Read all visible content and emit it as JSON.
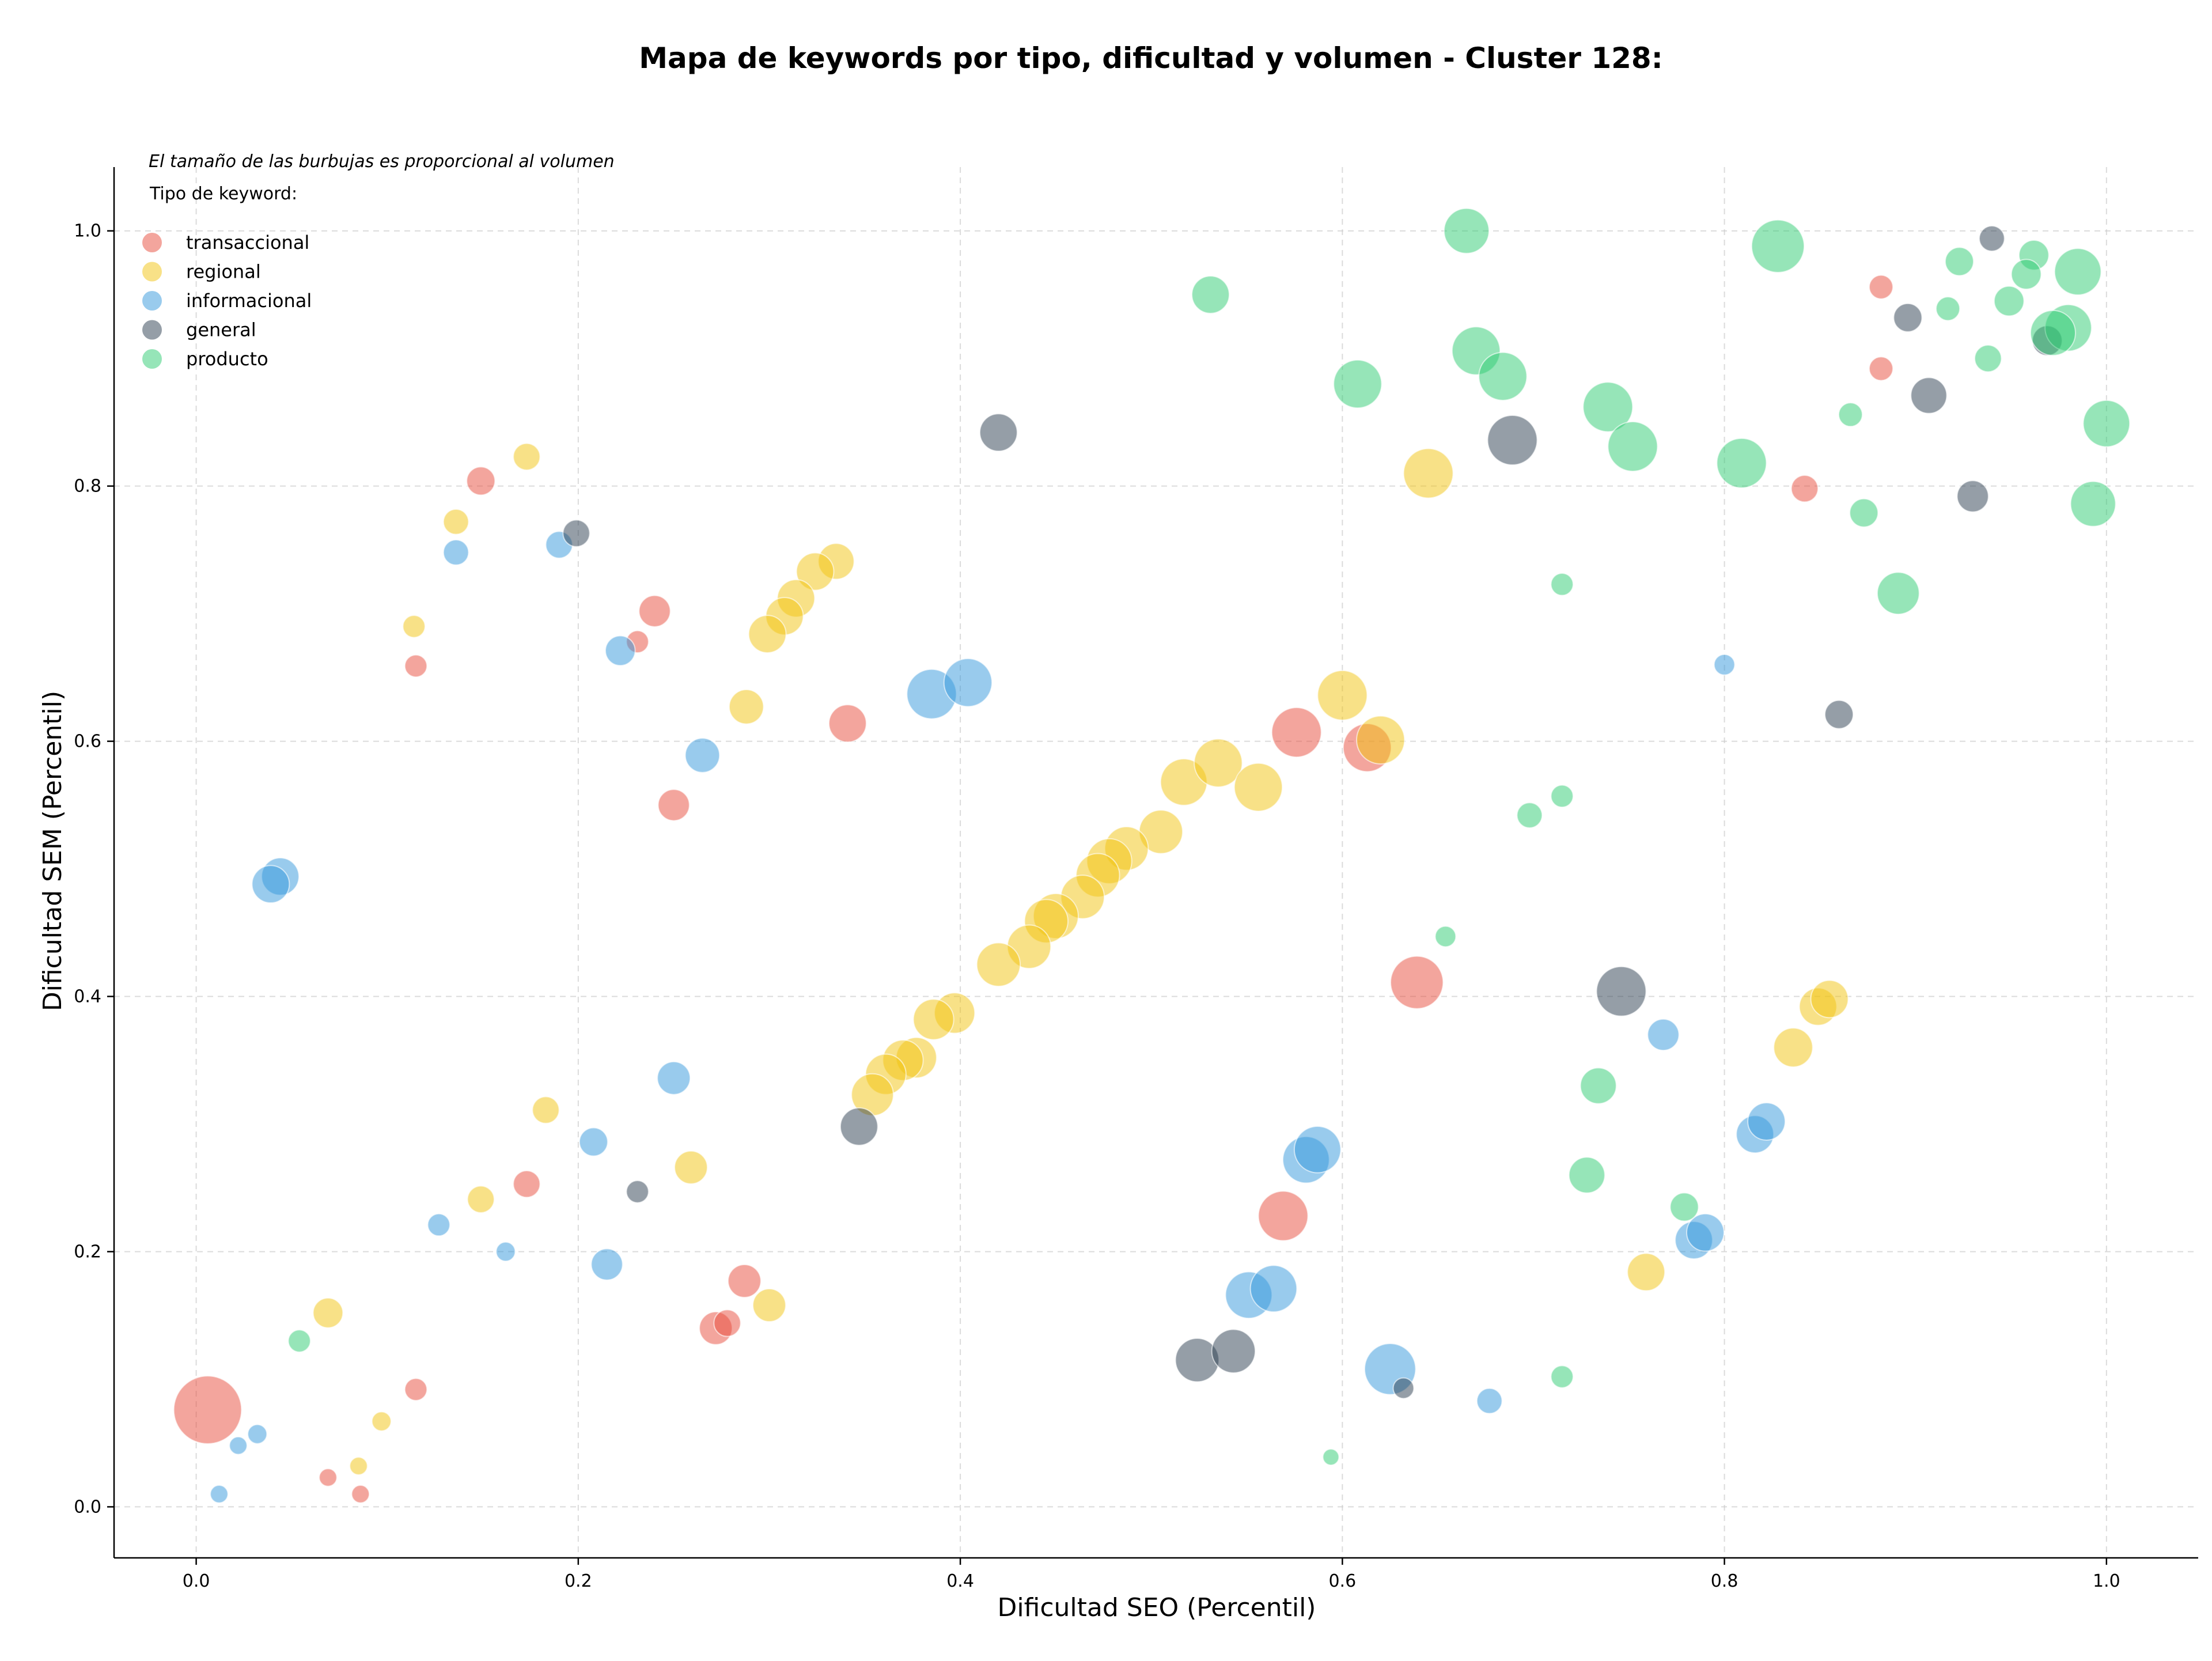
{
  "chart_data": {
    "type": "scatter",
    "title": "Mapa de keywords por tipo, dificultad y volumen - Cluster 128:",
    "xlabel": "Dificultad SEO (Percentil)",
    "ylabel": "Dificultad SEM (Percentil)",
    "xlim": [
      -0.043,
      1.048
    ],
    "ylim": [
      -0.04,
      1.05
    ],
    "xticks": [
      0.0,
      0.2,
      0.4,
      0.6,
      0.8,
      1.0
    ],
    "yticks": [
      0.0,
      0.2,
      0.4,
      0.6,
      0.8,
      1.0
    ],
    "tick_labels_x": [
      "0.0",
      "0.2",
      "0.4",
      "0.6",
      "0.8",
      "1.0"
    ],
    "tick_labels_y": [
      "0.0",
      "0.2",
      "0.4",
      "0.6",
      "0.8",
      "1.0"
    ],
    "grid": true,
    "annotation": "El tamaño de las burbujas es proporcional al volumen",
    "legend": {
      "title": "Tipo de keyword:",
      "placement": "top-left",
      "items": [
        {
          "name": "transaccional",
          "color": "#E74C3C"
        },
        {
          "name": "regional",
          "color": "#F1C40F"
        },
        {
          "name": "informacional",
          "color": "#3498DB"
        },
        {
          "name": "general",
          "color": "#2C3E50"
        },
        {
          "name": "producto",
          "color": "#2ECC71"
        }
      ]
    },
    "size_note": "Third value of each point is relative bubble size (volume, 0-100)",
    "series": [
      {
        "name": "transaccional",
        "color": "#E74C3C",
        "points": [
          [
            0.006,
            0.076,
            80
          ],
          [
            0.149,
            0.804,
            28
          ],
          [
            0.115,
            0.659,
            20
          ],
          [
            0.24,
            0.702,
            32
          ],
          [
            0.231,
            0.678,
            20
          ],
          [
            0.341,
            0.614,
            40
          ],
          [
            0.25,
            0.55,
            32
          ],
          [
            0.173,
            0.253,
            26
          ],
          [
            0.287,
            0.177,
            34
          ],
          [
            0.272,
            0.14,
            34
          ],
          [
            0.278,
            0.144,
            26
          ],
          [
            0.115,
            0.092,
            20
          ],
          [
            0.069,
            0.023,
            14
          ],
          [
            0.086,
            0.01,
            14
          ],
          [
            0.576,
            0.607,
            56
          ],
          [
            0.613,
            0.595,
            54
          ],
          [
            0.639,
            0.411,
            60
          ],
          [
            0.569,
            0.228,
            56
          ],
          [
            0.882,
            0.956,
            22
          ],
          [
            0.882,
            0.892,
            22
          ],
          [
            0.842,
            0.798,
            26
          ]
        ]
      },
      {
        "name": "regional",
        "color": "#F1C40F",
        "points": [
          [
            0.173,
            0.823,
            26
          ],
          [
            0.136,
            0.772,
            24
          ],
          [
            0.114,
            0.69,
            20
          ],
          [
            0.335,
            0.741,
            38
          ],
          [
            0.324,
            0.733,
            40
          ],
          [
            0.314,
            0.712,
            40
          ],
          [
            0.308,
            0.698,
            40
          ],
          [
            0.299,
            0.684,
            40
          ],
          [
            0.288,
            0.627,
            36
          ],
          [
            0.6,
            0.636,
            56
          ],
          [
            0.62,
            0.601,
            54
          ],
          [
            0.645,
            0.81,
            56
          ],
          [
            0.517,
            0.568,
            52
          ],
          [
            0.535,
            0.583,
            54
          ],
          [
            0.556,
            0.564,
            54
          ],
          [
            0.505,
            0.529,
            48
          ],
          [
            0.487,
            0.516,
            48
          ],
          [
            0.478,
            0.506,
            50
          ],
          [
            0.472,
            0.495,
            48
          ],
          [
            0.464,
            0.478,
            48
          ],
          [
            0.45,
            0.463,
            50
          ],
          [
            0.445,
            0.459,
            48
          ],
          [
            0.436,
            0.439,
            48
          ],
          [
            0.42,
            0.425,
            48
          ],
          [
            0.397,
            0.387,
            44
          ],
          [
            0.386,
            0.382,
            44
          ],
          [
            0.377,
            0.352,
            44
          ],
          [
            0.37,
            0.35,
            44
          ],
          [
            0.361,
            0.339,
            44
          ],
          [
            0.354,
            0.323,
            46
          ],
          [
            0.183,
            0.311,
            26
          ],
          [
            0.149,
            0.241,
            26
          ],
          [
            0.259,
            0.266,
            34
          ],
          [
            0.3,
            0.158,
            34
          ],
          [
            0.069,
            0.152,
            30
          ],
          [
            0.097,
            0.067,
            16
          ],
          [
            0.085,
            0.032,
            14
          ],
          [
            0.836,
            0.36,
            42
          ],
          [
            0.849,
            0.392,
            40
          ],
          [
            0.855,
            0.398,
            40
          ],
          [
            0.759,
            0.184,
            40
          ]
        ]
      },
      {
        "name": "informacional",
        "color": "#3498DB",
        "points": [
          [
            0.136,
            0.748,
            24
          ],
          [
            0.19,
            0.754,
            26
          ],
          [
            0.222,
            0.671,
            30
          ],
          [
            0.265,
            0.589,
            36
          ],
          [
            0.385,
            0.637,
            56
          ],
          [
            0.404,
            0.646,
            54
          ],
          [
            0.044,
            0.494,
            40
          ],
          [
            0.039,
            0.488,
            40
          ],
          [
            0.25,
            0.336,
            34
          ],
          [
            0.208,
            0.286,
            28
          ],
          [
            0.127,
            0.221,
            20
          ],
          [
            0.162,
            0.2,
            16
          ],
          [
            0.215,
            0.19,
            32
          ],
          [
            0.032,
            0.057,
            16
          ],
          [
            0.022,
            0.048,
            14
          ],
          [
            0.012,
            0.01,
            14
          ],
          [
            0.581,
            0.272,
            52
          ],
          [
            0.587,
            0.28,
            52
          ],
          [
            0.551,
            0.166,
            52
          ],
          [
            0.564,
            0.171,
            52
          ],
          [
            0.625,
            0.108,
            58
          ],
          [
            0.677,
            0.083,
            24
          ],
          [
            0.768,
            0.37,
            32
          ],
          [
            0.8,
            0.66,
            18
          ],
          [
            0.816,
            0.292,
            40
          ],
          [
            0.822,
            0.302,
            40
          ],
          [
            0.784,
            0.209,
            40
          ],
          [
            0.79,
            0.215,
            40
          ]
        ]
      },
      {
        "name": "general",
        "color": "#2C3E50",
        "points": [
          [
            0.199,
            0.763,
            26
          ],
          [
            0.42,
            0.842,
            40
          ],
          [
            0.689,
            0.836,
            56
          ],
          [
            0.231,
            0.247,
            20
          ],
          [
            0.347,
            0.298,
            40
          ],
          [
            0.524,
            0.115,
            48
          ],
          [
            0.543,
            0.122,
            48
          ],
          [
            0.632,
            0.093,
            18
          ],
          [
            0.746,
            0.404,
            56
          ],
          [
            0.86,
            0.621,
            28
          ],
          [
            0.896,
            0.932,
            28
          ],
          [
            0.907,
            0.871,
            38
          ],
          [
            0.93,
            0.792,
            32
          ],
          [
            0.94,
            0.994,
            24
          ],
          [
            0.969,
            0.914,
            30
          ]
        ]
      },
      {
        "name": "producto",
        "color": "#2ECC71",
        "points": [
          [
            0.531,
            0.95,
            40
          ],
          [
            0.665,
            1.0,
            50
          ],
          [
            0.828,
            0.988,
            60
          ],
          [
            0.608,
            0.88,
            54
          ],
          [
            0.67,
            0.906,
            54
          ],
          [
            0.684,
            0.886,
            54
          ],
          [
            0.739,
            0.862,
            56
          ],
          [
            0.752,
            0.831,
            56
          ],
          [
            0.809,
            0.818,
            56
          ],
          [
            0.866,
            0.856,
            22
          ],
          [
            0.873,
            0.779,
            28
          ],
          [
            0.891,
            0.716,
            46
          ],
          [
            0.715,
            0.723,
            20
          ],
          [
            0.715,
            0.557,
            20
          ],
          [
            0.698,
            0.542,
            24
          ],
          [
            0.654,
            0.447,
            18
          ],
          [
            0.734,
            0.33,
            38
          ],
          [
            0.728,
            0.26,
            38
          ],
          [
            0.779,
            0.235,
            28
          ],
          [
            0.715,
            0.102,
            20
          ],
          [
            0.594,
            0.039,
            12
          ],
          [
            0.054,
            0.13,
            20
          ],
          [
            0.923,
            0.976,
            28
          ],
          [
            0.917,
            0.939,
            22
          ],
          [
            0.938,
            0.9,
            26
          ],
          [
            0.949,
            0.945,
            30
          ],
          [
            0.962,
            0.981,
            30
          ],
          [
            0.958,
            0.966,
            30
          ],
          [
            0.985,
            0.968,
            52
          ],
          [
            0.98,
            0.924,
            52
          ],
          [
            0.972,
            0.92,
            50
          ],
          [
            1.0,
            0.849,
            52
          ],
          [
            0.993,
            0.786,
            50
          ]
        ]
      }
    ]
  }
}
